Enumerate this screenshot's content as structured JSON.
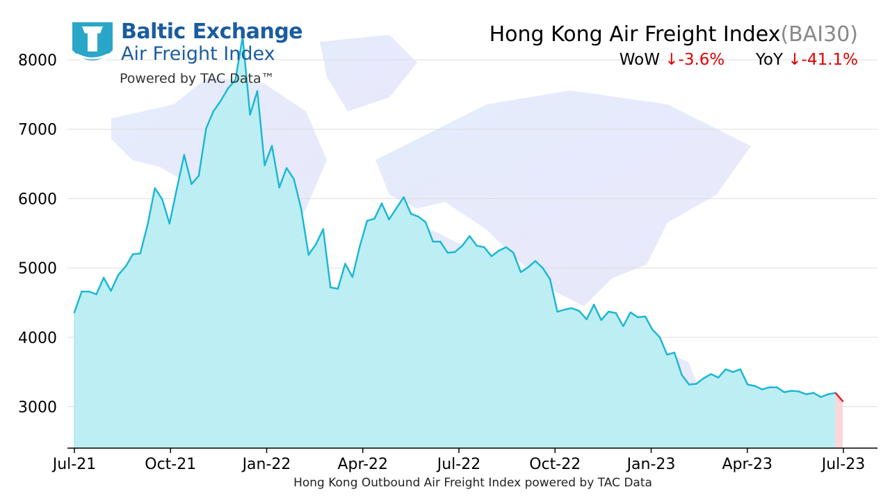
{
  "logo": {
    "line1": "Baltic Exchange",
    "line2": "Air Freight Index",
    "line3": "Powered by TAC Data™"
  },
  "header": {
    "title": "Hong Kong Air Freight Index",
    "code": "(BAI30)",
    "wow_label": "WoW",
    "wow_value": "↓-3.6%",
    "yoy_label": "YoY",
    "yoy_value": "↓-41.1%"
  },
  "footer": "Hong Kong Outbound Air Freight Index powered by TAC Data",
  "colors": {
    "line": "#1cb8d4",
    "fill": "#bdeef3",
    "last_change": "#e02020",
    "last_change_fill": "#ffd6d9",
    "grid": "#dddddd"
  },
  "chart_data": {
    "type": "area",
    "ylim": [
      2400,
      8400
    ],
    "yticks": [
      3000,
      4000,
      5000,
      6000,
      7000,
      8000
    ],
    "xticks": [
      "Jul-21",
      "Oct-21",
      "Jan-22",
      "Apr-22",
      "Jul-22",
      "Oct-22",
      "Jan-23",
      "Apr-23",
      "Jul-23"
    ],
    "grid": "horizontal",
    "series": [
      {
        "values": [
          4360,
          4660,
          4660,
          4620,
          4860,
          4670,
          4900,
          5020,
          5200,
          5210,
          5620,
          6150,
          5990,
          5640,
          6140,
          6630,
          6210,
          6330,
          7010,
          7260,
          7410,
          7590,
          7710,
          8330,
          7210,
          7550,
          6480,
          6760,
          6160,
          6440,
          6280,
          5850,
          5190,
          5340,
          5560,
          4720,
          4700,
          5060,
          4870,
          5310,
          5680,
          5710,
          5930,
          5700,
          5860,
          6020,
          5780,
          5740,
          5660,
          5380,
          5380,
          5220,
          5230,
          5320,
          5460,
          5320,
          5300,
          5170,
          5250,
          5300,
          5220,
          4940,
          5010,
          5100,
          5000,
          4840,
          4370,
          4400,
          4420,
          4380,
          4260,
          4470,
          4250,
          4370,
          4350,
          4160,
          4360,
          4290,
          4300,
          4110,
          4000,
          3750,
          3780,
          3460,
          3320,
          3330,
          3410,
          3470,
          3420,
          3540,
          3500,
          3540,
          3320,
          3300,
          3250,
          3280,
          3280,
          3210,
          3230,
          3220,
          3180,
          3200,
          3140,
          3180,
          3200
        ]
      },
      {
        "values": [
          3200,
          3080
        ]
      }
    ]
  }
}
